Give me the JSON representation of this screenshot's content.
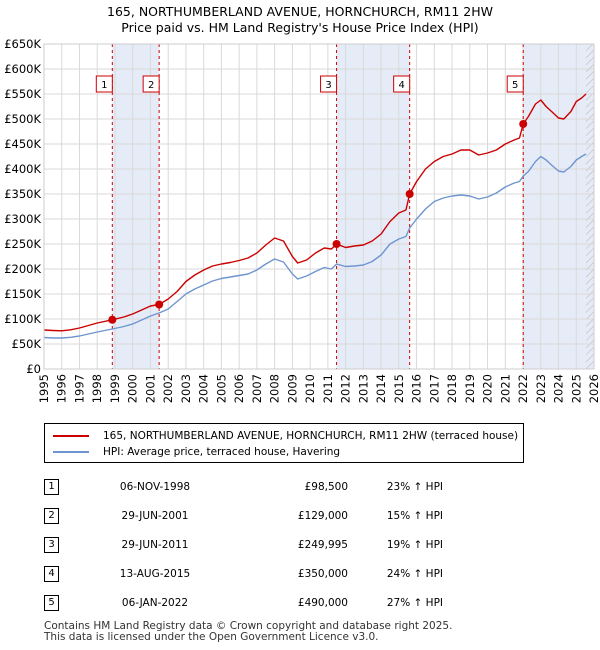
{
  "title_line1": "165, NORTHUMBERLAND AVENUE, HORNCHURCH, RM11 2HW",
  "title_line2": "Price paid vs. HM Land Registry's House Price Index (HPI)",
  "chart_data": {
    "type": "line",
    "xlabel": "",
    "ylabel": "",
    "xlim": [
      1995,
      2026
    ],
    "ylim": [
      0,
      650000
    ],
    "x_ticks": [
      1995,
      1996,
      1997,
      1998,
      1999,
      2000,
      2001,
      2002,
      2003,
      2004,
      2005,
      2006,
      2007,
      2008,
      2009,
      2010,
      2011,
      2012,
      2013,
      2014,
      2015,
      2016,
      2017,
      2018,
      2019,
      2020,
      2021,
      2022,
      2023,
      2024,
      2025,
      2026
    ],
    "y_ticks": [
      {
        "value": 0,
        "label": "£0"
      },
      {
        "value": 50000,
        "label": "£50K"
      },
      {
        "value": 100000,
        "label": "£100K"
      },
      {
        "value": 150000,
        "label": "£150K"
      },
      {
        "value": 200000,
        "label": "£200K"
      },
      {
        "value": 250000,
        "label": "£250K"
      },
      {
        "value": 300000,
        "label": "£300K"
      },
      {
        "value": 350000,
        "label": "£350K"
      },
      {
        "value": 400000,
        "label": "£400K"
      },
      {
        "value": 450000,
        "label": "£450K"
      },
      {
        "value": 500000,
        "label": "£500K"
      },
      {
        "value": 550000,
        "label": "£550K"
      },
      {
        "value": 600000,
        "label": "£600K"
      },
      {
        "value": 650000,
        "label": "£650K"
      }
    ],
    "series": [
      {
        "name": "165, NORTHUMBERLAND AVENUE, HORNCHURCH, RM11 2HW (terraced house)",
        "color": "#cc0000",
        "points": [
          [
            1995.0,
            78000
          ],
          [
            1995.5,
            77000
          ],
          [
            1996.0,
            76500
          ],
          [
            1996.5,
            78500
          ],
          [
            1997.0,
            82000
          ],
          [
            1997.5,
            87000
          ],
          [
            1998.0,
            92000
          ],
          [
            1998.85,
            98500
          ],
          [
            1999.5,
            104000
          ],
          [
            2000.0,
            110000
          ],
          [
            2000.5,
            118000
          ],
          [
            2001.0,
            126000
          ],
          [
            2001.49,
            129000
          ],
          [
            2002.0,
            140000
          ],
          [
            2002.5,
            155000
          ],
          [
            2003.0,
            175000
          ],
          [
            2003.5,
            188000
          ],
          [
            2004.0,
            198000
          ],
          [
            2004.5,
            206000
          ],
          [
            2005.0,
            210000
          ],
          [
            2005.5,
            213000
          ],
          [
            2006.0,
            217000
          ],
          [
            2006.5,
            222000
          ],
          [
            2007.0,
            232000
          ],
          [
            2007.5,
            248000
          ],
          [
            2008.0,
            262000
          ],
          [
            2008.5,
            256000
          ],
          [
            2009.0,
            225000
          ],
          [
            2009.3,
            212000
          ],
          [
            2009.8,
            218000
          ],
          [
            2010.3,
            232000
          ],
          [
            2010.8,
            242000
          ],
          [
            2011.2,
            240000
          ],
          [
            2011.49,
            249995
          ],
          [
            2012.0,
            243000
          ],
          [
            2012.5,
            246000
          ],
          [
            2013.0,
            248000
          ],
          [
            2013.5,
            256000
          ],
          [
            2014.0,
            270000
          ],
          [
            2014.5,
            295000
          ],
          [
            2015.0,
            312000
          ],
          [
            2015.4,
            318000
          ],
          [
            2015.61,
            350000
          ],
          [
            2016.0,
            375000
          ],
          [
            2016.5,
            400000
          ],
          [
            2017.0,
            415000
          ],
          [
            2017.5,
            425000
          ],
          [
            2018.0,
            430000
          ],
          [
            2018.5,
            438000
          ],
          [
            2019.0,
            438000
          ],
          [
            2019.5,
            428000
          ],
          [
            2020.0,
            432000
          ],
          [
            2020.5,
            438000
          ],
          [
            2021.0,
            450000
          ],
          [
            2021.5,
            458000
          ],
          [
            2021.8,
            462000
          ],
          [
            2022.01,
            490000
          ],
          [
            2022.3,
            505000
          ],
          [
            2022.7,
            530000
          ],
          [
            2023.0,
            538000
          ],
          [
            2023.3,
            525000
          ],
          [
            2023.7,
            512000
          ],
          [
            2024.0,
            502000
          ],
          [
            2024.3,
            500000
          ],
          [
            2024.7,
            515000
          ],
          [
            2025.0,
            535000
          ],
          [
            2025.3,
            542000
          ],
          [
            2025.55,
            550000
          ]
        ]
      },
      {
        "name": "HPI: Average price, terraced house, Havering",
        "color": "#6f95d0",
        "points": [
          [
            1995.0,
            63000
          ],
          [
            1995.5,
            62000
          ],
          [
            1996.0,
            62000
          ],
          [
            1996.5,
            63500
          ],
          [
            1997.0,
            66000
          ],
          [
            1997.5,
            70000
          ],
          [
            1998.0,
            74000
          ],
          [
            1998.85,
            80000
          ],
          [
            1999.5,
            85000
          ],
          [
            2000.0,
            90000
          ],
          [
            2000.5,
            98000
          ],
          [
            2001.0,
            106000
          ],
          [
            2001.49,
            112000
          ],
          [
            2002.0,
            120000
          ],
          [
            2002.5,
            135000
          ],
          [
            2003.0,
            150000
          ],
          [
            2003.5,
            160000
          ],
          [
            2004.0,
            168000
          ],
          [
            2004.5,
            176000
          ],
          [
            2005.0,
            181000
          ],
          [
            2005.5,
            184000
          ],
          [
            2006.0,
            187000
          ],
          [
            2006.5,
            190000
          ],
          [
            2007.0,
            198000
          ],
          [
            2007.5,
            210000
          ],
          [
            2008.0,
            220000
          ],
          [
            2008.5,
            214000
          ],
          [
            2009.0,
            190000
          ],
          [
            2009.3,
            180000
          ],
          [
            2009.8,
            186000
          ],
          [
            2010.3,
            195000
          ],
          [
            2010.8,
            203000
          ],
          [
            2011.2,
            200000
          ],
          [
            2011.49,
            210000
          ],
          [
            2012.0,
            205000
          ],
          [
            2012.5,
            206000
          ],
          [
            2013.0,
            208000
          ],
          [
            2013.5,
            215000
          ],
          [
            2014.0,
            228000
          ],
          [
            2014.5,
            250000
          ],
          [
            2015.0,
            260000
          ],
          [
            2015.4,
            265000
          ],
          [
            2015.61,
            282000
          ],
          [
            2016.0,
            300000
          ],
          [
            2016.5,
            320000
          ],
          [
            2017.0,
            335000
          ],
          [
            2017.5,
            342000
          ],
          [
            2018.0,
            346000
          ],
          [
            2018.5,
            348000
          ],
          [
            2019.0,
            346000
          ],
          [
            2019.5,
            340000
          ],
          [
            2020.0,
            344000
          ],
          [
            2020.5,
            352000
          ],
          [
            2021.0,
            364000
          ],
          [
            2021.5,
            372000
          ],
          [
            2021.8,
            375000
          ],
          [
            2022.01,
            386000
          ],
          [
            2022.3,
            395000
          ],
          [
            2022.7,
            415000
          ],
          [
            2023.0,
            425000
          ],
          [
            2023.3,
            418000
          ],
          [
            2023.7,
            405000
          ],
          [
            2024.0,
            396000
          ],
          [
            2024.3,
            394000
          ],
          [
            2024.7,
            405000
          ],
          [
            2025.0,
            418000
          ],
          [
            2025.3,
            425000
          ],
          [
            2025.55,
            430000
          ]
        ]
      }
    ],
    "sales": [
      {
        "id": "1",
        "x": 1998.85,
        "y": 98500
      },
      {
        "id": "2",
        "x": 2001.49,
        "y": 129000
      },
      {
        "id": "3",
        "x": 2011.49,
        "y": 249995
      },
      {
        "id": "4",
        "x": 2015.61,
        "y": 350000
      },
      {
        "id": "5",
        "x": 2022.01,
        "y": 490000
      }
    ],
    "sale_shading": [
      [
        1998.85,
        2001.49
      ],
      [
        2011.49,
        2015.61
      ],
      [
        2022.01,
        2026
      ]
    ],
    "hatched_region": [
      2025.55,
      2026
    ]
  },
  "legend": {
    "red_label": "165, NORTHUMBERLAND AVENUE, HORNCHURCH, RM11 2HW (terraced house)",
    "blue_label": "HPI: Average price, terraced house, Havering"
  },
  "transactions": [
    {
      "num": "1",
      "date": "06-NOV-1998",
      "price": "£98,500",
      "hpi": "23% ↑ HPI"
    },
    {
      "num": "2",
      "date": "29-JUN-2001",
      "price": "£129,000",
      "hpi": "15% ↑ HPI"
    },
    {
      "num": "3",
      "date": "29-JUN-2011",
      "price": "£249,995",
      "hpi": "19% ↑ HPI"
    },
    {
      "num": "4",
      "date": "13-AUG-2015",
      "price": "£350,000",
      "hpi": "24% ↑ HPI"
    },
    {
      "num": "5",
      "date": "06-JAN-2022",
      "price": "£490,000",
      "hpi": "27% ↑ HPI"
    }
  ],
  "footer_line1": "Contains HM Land Registry data © Crown copyright and database right 2025.",
  "footer_line2": "This data is licensed under the Open Government Licence v3.0."
}
